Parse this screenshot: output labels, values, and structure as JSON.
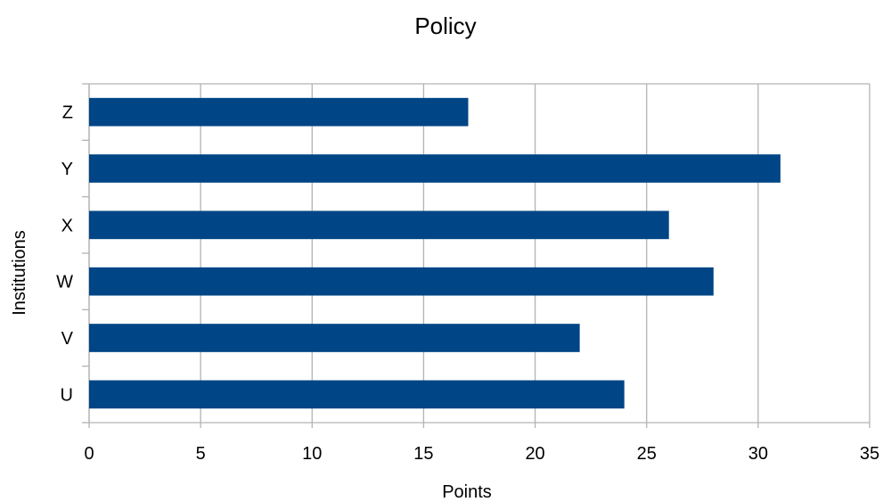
{
  "chart_data": {
    "type": "bar",
    "orientation": "horizontal",
    "title": "Policy",
    "xlabel": "Points",
    "ylabel": "Institutions",
    "categories": [
      "U",
      "V",
      "W",
      "X",
      "Y",
      "Z"
    ],
    "values": [
      24,
      22,
      28,
      26,
      31,
      17
    ],
    "xlim": [
      0,
      35
    ],
    "xticks": [
      0,
      5,
      10,
      15,
      20,
      25,
      30,
      35
    ],
    "grid": "vertical",
    "legend": "none",
    "colors": {
      "bar": "#004586",
      "grid": "#b3b3b3",
      "axis": "#b3b3b3"
    }
  }
}
